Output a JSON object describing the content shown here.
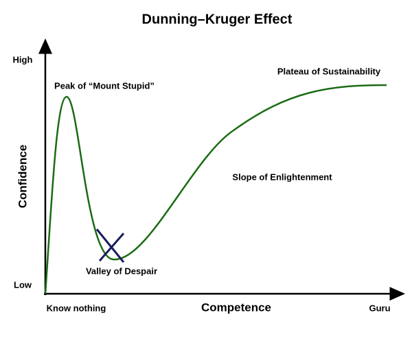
{
  "title": "Dunning–Kruger Effect",
  "y_axis": {
    "label": "Confidence",
    "high": "High",
    "low": "Low"
  },
  "x_axis": {
    "label": "Competence",
    "start": "Know nothing",
    "end": "Guru"
  },
  "annotations": {
    "peak": "Peak of “Mount Stupid”",
    "valley": "Valley of Despair",
    "slope": "Slope of Enlightenment",
    "plateau": "Plateau of Sustainability"
  }
}
